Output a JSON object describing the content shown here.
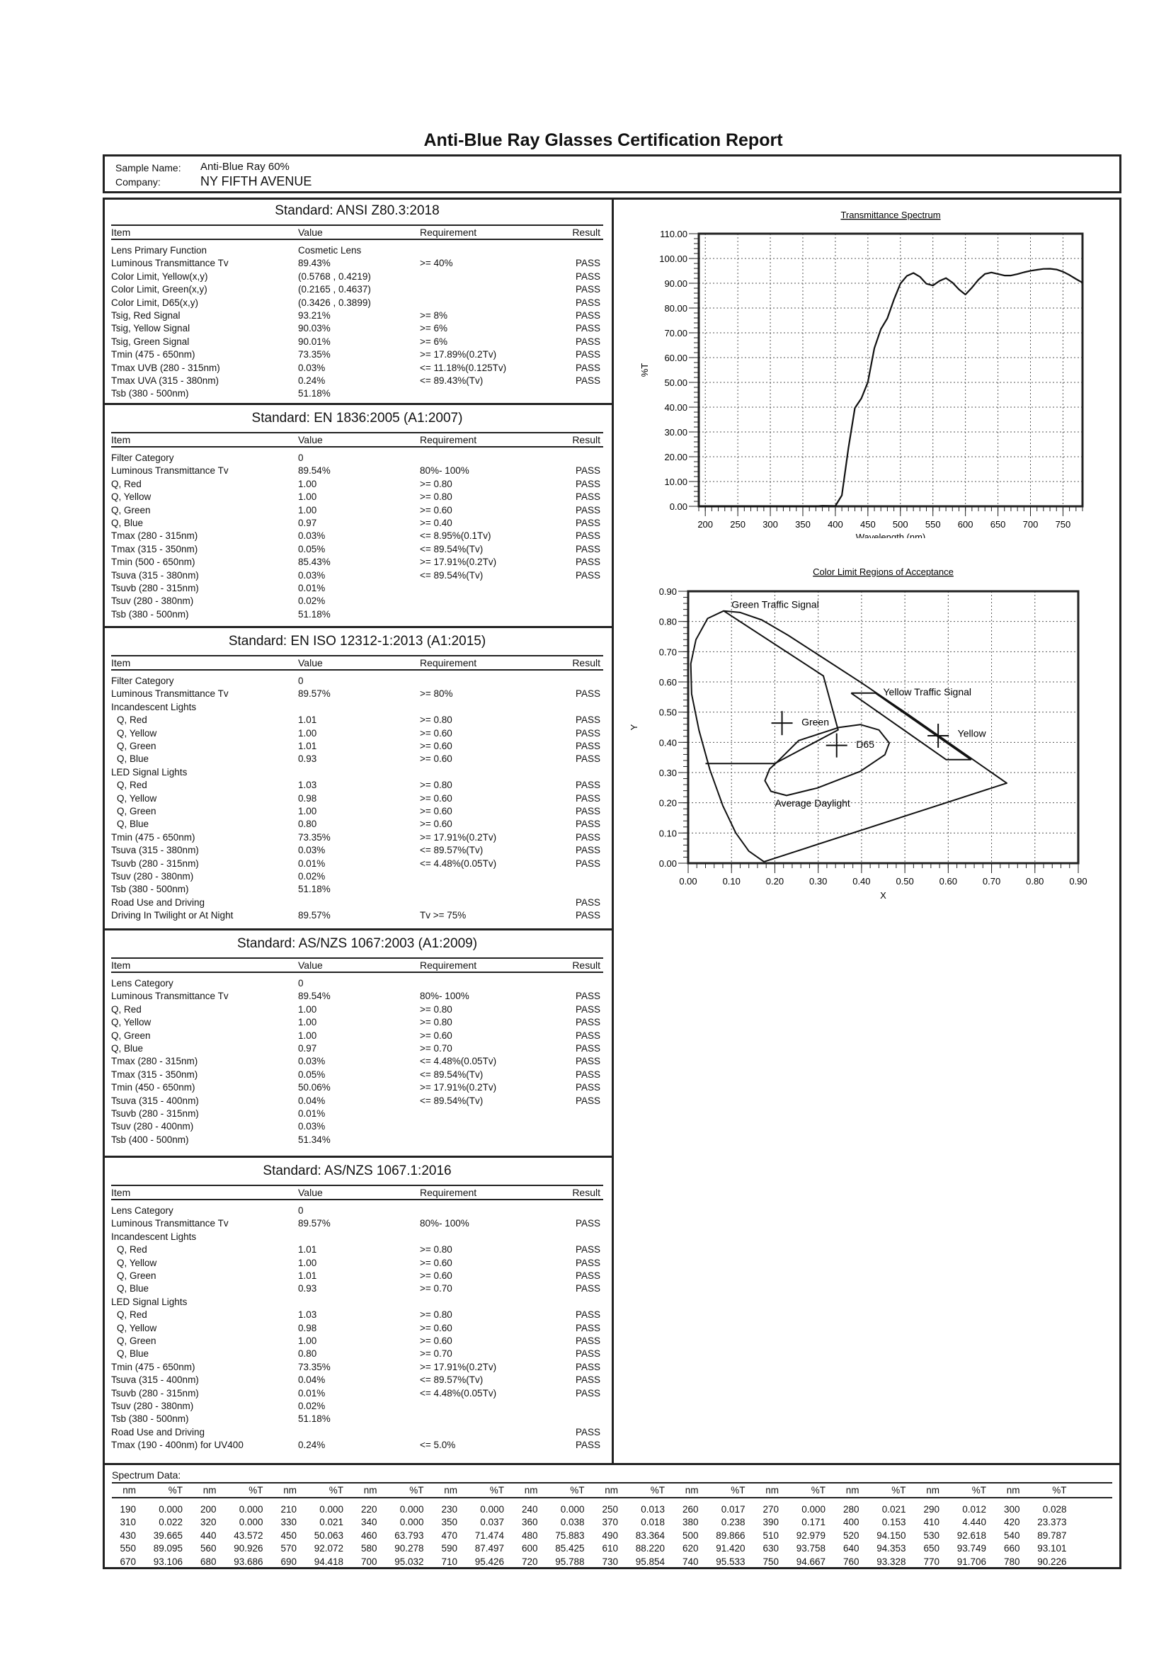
{
  "report_title": "Anti-Blue Ray Glasses Certification Report",
  "sample": {
    "name_label": "Sample Name:",
    "name": "Anti-Blue Ray 60%",
    "company_label": "Company:",
    "company": "NY FIFTH AVENUE"
  },
  "table_headers": [
    "Item",
    "Value",
    "Requirement",
    "Result"
  ],
  "standards": [
    {
      "title": "Standard: ANSI Z80.3:2018",
      "rows": [
        [
          "Lens Primary Function",
          "Cosmetic Lens",
          "",
          ""
        ],
        [
          "Luminous Transmittance Tv",
          "89.43%",
          ">= 40%",
          "PASS"
        ],
        [
          "Color Limit, Yellow(x,y)",
          "(0.5768 , 0.4219)",
          "",
          "PASS"
        ],
        [
          "Color Limit, Green(x,y)",
          "(0.2165 , 0.4637)",
          "",
          "PASS"
        ],
        [
          "Color Limit, D65(x,y)",
          "(0.3426 , 0.3899)",
          "",
          "PASS"
        ],
        [
          "Tsig, Red Signal",
          "93.21%",
          ">= 8%",
          "PASS"
        ],
        [
          "Tsig, Yellow Signal",
          "90.03%",
          ">= 6%",
          "PASS"
        ],
        [
          "Tsig, Green Signal",
          "90.01%",
          ">= 6%",
          "PASS"
        ],
        [
          "Tmin (475 - 650nm)",
          "73.35%",
          ">= 17.89%(0.2Tv)",
          "PASS"
        ],
        [
          "Tmax UVB (280 - 315nm)",
          "0.03%",
          "<= 11.18%(0.125Tv)",
          "PASS"
        ],
        [
          "Tmax UVA (315 - 380nm)",
          "0.24%",
          "<= 89.43%(Tv)",
          "PASS"
        ],
        [
          "Tsb (380 - 500nm)",
          "51.18%",
          "",
          ""
        ]
      ]
    },
    {
      "title": "Standard: EN 1836:2005 (A1:2007)",
      "rows": [
        [
          "Filter Category",
          "0",
          "",
          ""
        ],
        [
          "Luminous Transmittance Tv",
          "89.54%",
          "80%- 100%",
          "PASS"
        ],
        [
          "Q, Red",
          "1.00",
          ">= 0.80",
          "PASS"
        ],
        [
          "Q, Yellow",
          "1.00",
          ">= 0.80",
          "PASS"
        ],
        [
          "Q, Green",
          "1.00",
          ">= 0.60",
          "PASS"
        ],
        [
          "Q, Blue",
          "0.97",
          ">= 0.40",
          "PASS"
        ],
        [
          "Tmax (280 - 315nm)",
          "0.03%",
          "<= 8.95%(0.1Tv)",
          "PASS"
        ],
        [
          "Tmax (315 - 350nm)",
          "0.05%",
          "<= 89.54%(Tv)",
          "PASS"
        ],
        [
          "Tmin (500 - 650nm)",
          "85.43%",
          ">= 17.91%(0.2Tv)",
          "PASS"
        ],
        [
          "Tsuva (315 - 380nm)",
          "0.03%",
          "<= 89.54%(Tv)",
          "PASS"
        ],
        [
          "Tsuvb (280 - 315nm)",
          "0.01%",
          "",
          ""
        ],
        [
          "Tsuv (280 - 380nm)",
          "0.02%",
          "",
          ""
        ],
        [
          "Tsb (380 - 500nm)",
          "51.18%",
          "",
          ""
        ]
      ]
    },
    {
      "title": "Standard: EN ISO 12312-1:2013 (A1:2015)",
      "rows": [
        [
          "Filter Category",
          "0",
          "",
          ""
        ],
        [
          "Luminous Transmittance Tv",
          "89.57%",
          ">= 80%",
          "PASS"
        ],
        [
          "Incandescent Lights",
          "",
          "",
          ""
        ],
        [
          "Q, Red",
          "1.01",
          ">= 0.80",
          "PASS",
          1
        ],
        [
          "Q, Yellow",
          "1.00",
          ">= 0.60",
          "PASS",
          1
        ],
        [
          "Q, Green",
          "1.01",
          ">= 0.60",
          "PASS",
          1
        ],
        [
          "Q, Blue",
          "0.93",
          ">= 0.60",
          "PASS",
          1
        ],
        [
          "LED Signal Lights",
          "",
          "",
          ""
        ],
        [
          "Q, Red",
          "1.03",
          ">= 0.80",
          "PASS",
          1
        ],
        [
          "Q, Yellow",
          "0.98",
          ">= 0.60",
          "PASS",
          1
        ],
        [
          "Q, Green",
          "1.00",
          ">= 0.60",
          "PASS",
          1
        ],
        [
          "Q, Blue",
          "0.80",
          ">= 0.60",
          "PASS",
          1
        ],
        [
          "Tmin (475 - 650nm)",
          "73.35%",
          ">= 17.91%(0.2Tv)",
          "PASS"
        ],
        [
          "Tsuva (315 - 380nm)",
          "0.03%",
          "<= 89.57%(Tv)",
          "PASS"
        ],
        [
          "Tsuvb (280 - 315nm)",
          "0.01%",
          "<= 4.48%(0.05Tv)",
          "PASS"
        ],
        [
          "Tsuv (280 - 380nm)",
          "0.02%",
          "",
          ""
        ],
        [
          "Tsb (380 - 500nm)",
          "51.18%",
          "",
          ""
        ],
        [
          "Road Use and Driving",
          "",
          "",
          "PASS"
        ],
        [
          "Driving In Twilight or At Night",
          "89.57%",
          "Tv >= 75%",
          "PASS"
        ]
      ]
    },
    {
      "title": "Standard: AS/NZS 1067:2003 (A1:2009)",
      "rows": [
        [
          "Lens Category",
          "0",
          "",
          ""
        ],
        [
          "Luminous Transmittance Tv",
          "89.54%",
          "80%- 100%",
          "PASS"
        ],
        [
          "Q, Red",
          "1.00",
          ">= 0.80",
          "PASS"
        ],
        [
          "Q, Yellow",
          "1.00",
          ">= 0.80",
          "PASS"
        ],
        [
          "Q, Green",
          "1.00",
          ">= 0.60",
          "PASS"
        ],
        [
          "Q, Blue",
          "0.97",
          ">= 0.70",
          "PASS"
        ],
        [
          "Tmax (280 - 315nm)",
          "0.03%",
          "<= 4.48%(0.05Tv)",
          "PASS"
        ],
        [
          "Tmax (315 - 350nm)",
          "0.05%",
          "<= 89.54%(Tv)",
          "PASS"
        ],
        [
          "Tmin (450 - 650nm)",
          "50.06%",
          ">= 17.91%(0.2Tv)",
          "PASS"
        ],
        [
          "Tsuva (315 - 400nm)",
          "0.04%",
          "<= 89.54%(Tv)",
          "PASS"
        ],
        [
          "Tsuvb (280 - 315nm)",
          "0.01%",
          "",
          ""
        ],
        [
          "Tsuv (280 - 400nm)",
          "0.03%",
          "",
          ""
        ],
        [
          "Tsb (400 - 500nm)",
          "51.34%",
          "",
          ""
        ]
      ]
    },
    {
      "title": "Standard: AS/NZS 1067.1:2016",
      "rows": [
        [
          "Lens Category",
          "0",
          "",
          ""
        ],
        [
          "Luminous Transmittance Tv",
          "89.57%",
          "80%- 100%",
          "PASS"
        ],
        [
          "Incandescent Lights",
          "",
          "",
          ""
        ],
        [
          "Q, Red",
          "1.01",
          ">= 0.80",
          "PASS",
          1
        ],
        [
          "Q, Yellow",
          "1.00",
          ">= 0.60",
          "PASS",
          1
        ],
        [
          "Q, Green",
          "1.01",
          ">= 0.60",
          "PASS",
          1
        ],
        [
          "Q, Blue",
          "0.93",
          ">= 0.70",
          "PASS",
          1
        ],
        [
          "LED Signal Lights",
          "",
          "",
          ""
        ],
        [
          "Q, Red",
          "1.03",
          ">= 0.80",
          "PASS",
          1
        ],
        [
          "Q, Yellow",
          "0.98",
          ">= 0.60",
          "PASS",
          1
        ],
        [
          "Q, Green",
          "1.00",
          ">= 0.60",
          "PASS",
          1
        ],
        [
          "Q, Blue",
          "0.80",
          ">= 0.70",
          "PASS",
          1
        ],
        [
          "Tmin (475 - 650nm)",
          "73.35%",
          ">= 17.91%(0.2Tv)",
          "PASS"
        ],
        [
          "Tsuva (315 - 400nm)",
          "0.04%",
          "<= 89.57%(Tv)",
          "PASS"
        ],
        [
          "Tsuvb (280 - 315nm)",
          "0.01%",
          "<= 4.48%(0.05Tv)",
          "PASS"
        ],
        [
          "Tsuv (280 - 380nm)",
          "0.02%",
          "",
          ""
        ],
        [
          "Tsb (380 - 500nm)",
          "51.18%",
          "",
          ""
        ],
        [
          "Road Use and Driving",
          "",
          "",
          "PASS"
        ],
        [
          "Tmax (190 - 400nm) for UV400",
          "0.24%",
          "<= 5.0%",
          "PASS"
        ]
      ]
    }
  ],
  "spectrum_table": {
    "label": "Spectrum Data:",
    "col_nm": "nm",
    "col_t": "%T",
    "rows": [
      [
        [
          "190",
          "0.000"
        ],
        [
          "200",
          "0.000"
        ],
        [
          "210",
          "0.000"
        ],
        [
          "220",
          "0.000"
        ],
        [
          "230",
          "0.000"
        ],
        [
          "240",
          "0.000"
        ],
        [
          "250",
          "0.013"
        ],
        [
          "260",
          "0.017"
        ],
        [
          "270",
          "0.000"
        ],
        [
          "280",
          "0.021"
        ],
        [
          "290",
          "0.012"
        ],
        [
          "300",
          "0.028"
        ]
      ],
      [
        [
          "310",
          "0.022"
        ],
        [
          "320",
          "0.000"
        ],
        [
          "330",
          "0.021"
        ],
        [
          "340",
          "0.000"
        ],
        [
          "350",
          "0.037"
        ],
        [
          "360",
          "0.038"
        ],
        [
          "370",
          "0.018"
        ],
        [
          "380",
          "0.238"
        ],
        [
          "390",
          "0.171"
        ],
        [
          "400",
          "0.153"
        ],
        [
          "410",
          "4.440"
        ],
        [
          "420",
          "23.373"
        ]
      ],
      [
        [
          "430",
          "39.665"
        ],
        [
          "440",
          "43.572"
        ],
        [
          "450",
          "50.063"
        ],
        [
          "460",
          "63.793"
        ],
        [
          "470",
          "71.474"
        ],
        [
          "480",
          "75.883"
        ],
        [
          "490",
          "83.364"
        ],
        [
          "500",
          "89.866"
        ],
        [
          "510",
          "92.979"
        ],
        [
          "520",
          "94.150"
        ],
        [
          "530",
          "92.618"
        ],
        [
          "540",
          "89.787"
        ]
      ],
      [
        [
          "550",
          "89.095"
        ],
        [
          "560",
          "90.926"
        ],
        [
          "570",
          "92.072"
        ],
        [
          "580",
          "90.278"
        ],
        [
          "590",
          "87.497"
        ],
        [
          "600",
          "85.425"
        ],
        [
          "610",
          "88.220"
        ],
        [
          "620",
          "91.420"
        ],
        [
          "630",
          "93.758"
        ],
        [
          "640",
          "94.353"
        ],
        [
          "650",
          "93.749"
        ],
        [
          "660",
          "93.101"
        ]
      ],
      [
        [
          "670",
          "93.106"
        ],
        [
          "680",
          "93.686"
        ],
        [
          "690",
          "94.418"
        ],
        [
          "700",
          "95.032"
        ],
        [
          "710",
          "95.426"
        ],
        [
          "720",
          "95.788"
        ],
        [
          "730",
          "95.854"
        ],
        [
          "740",
          "95.533"
        ],
        [
          "750",
          "94.667"
        ],
        [
          "760",
          "93.328"
        ],
        [
          "770",
          "91.706"
        ],
        [
          "780",
          "90.226"
        ]
      ]
    ]
  },
  "chart_data": [
    {
      "type": "line",
      "title": "Transmittance Spectrum",
      "xlabel": "Wavelength (nm)",
      "ylabel": "%T",
      "xlim": [
        190,
        780
      ],
      "ylim": [
        0,
        110
      ],
      "xticks": [
        "200",
        "250",
        "300",
        "350",
        "400",
        "450",
        "500",
        "550",
        "600",
        "650",
        "700",
        "750"
      ],
      "yticks": [
        "0.00",
        "10.00",
        "20.00",
        "30.00",
        "40.00",
        "50.00",
        "60.00",
        "70.00",
        "80.00",
        "90.00",
        "100.00",
        "110.00"
      ],
      "grid": true,
      "series_source": "spectrum_table"
    },
    {
      "type": "scatter",
      "title": "Color Limit Regions of Acceptance",
      "xlabel": "X",
      "ylabel": "Y",
      "xlim": [
        0,
        0.9
      ],
      "ylim": [
        0,
        0.9
      ],
      "xticks": [
        "0.00",
        "0.10",
        "0.20",
        "0.30",
        "0.40",
        "0.50",
        "0.60",
        "0.70",
        "0.80",
        "0.90"
      ],
      "yticks": [
        "0.00",
        "0.10",
        "0.20",
        "0.30",
        "0.40",
        "0.50",
        "0.60",
        "0.70",
        "0.80",
        "0.90"
      ],
      "grid": true,
      "points": [
        {
          "label": "Green",
          "x": 0.2165,
          "y": 0.4637
        },
        {
          "label": "D65",
          "x": 0.3426,
          "y": 0.3899
        },
        {
          "label": "Yellow",
          "x": 0.5768,
          "y": 0.4219
        }
      ],
      "regions": [
        {
          "label": "",
          "points": [
            [
              0.175,
              0.005
            ],
            [
              0.14,
              0.04
            ],
            [
              0.11,
              0.1
            ],
            [
              0.08,
              0.19
            ],
            [
              0.05,
              0.31
            ],
            [
              0.025,
              0.44
            ],
            [
              0.008,
              0.56
            ],
            [
              0.006,
              0.66
            ],
            [
              0.018,
              0.74
            ],
            [
              0.045,
              0.81
            ],
            [
              0.082,
              0.835
            ],
            [
              0.12,
              0.83
            ],
            [
              0.17,
              0.805
            ],
            [
              0.23,
              0.755
            ],
            [
              0.3,
              0.69
            ],
            [
              0.4,
              0.597
            ],
            [
              0.5,
              0.5
            ],
            [
              0.6,
              0.4
            ],
            [
              0.735,
              0.265
            ],
            [
              0.175,
              0.005
            ]
          ]
        },
        {
          "label": "Green Traffic Signal",
          "points": [
            [
              0.082,
              0.835
            ],
            [
              0.312,
              0.62
            ],
            [
              0.346,
              0.441
            ],
            [
              0.2,
              0.33
            ],
            [
              0.04,
              0.33
            ]
          ]
        },
        {
          "label": "Yellow Traffic Signal",
          "points": [
            [
              0.376,
              0.563
            ],
            [
              0.432,
              0.563
            ],
            [
              0.652,
              0.343
            ],
            [
              0.595,
              0.343
            ],
            [
              0.376,
              0.563
            ]
          ]
        },
        {
          "label": "Average Daylight",
          "points": [
            [
              0.206,
              0.336
            ],
            [
              0.255,
              0.406
            ],
            [
              0.347,
              0.449
            ],
            [
              0.397,
              0.459
            ],
            [
              0.44,
              0.441
            ],
            [
              0.464,
              0.398
            ],
            [
              0.454,
              0.359
            ],
            [
              0.397,
              0.304
            ],
            [
              0.298,
              0.249
            ],
            [
              0.227,
              0.224
            ],
            [
              0.191,
              0.238
            ],
            [
              0.177,
              0.273
            ],
            [
              0.188,
              0.312
            ],
            [
              0.206,
              0.336
            ]
          ]
        }
      ]
    }
  ]
}
